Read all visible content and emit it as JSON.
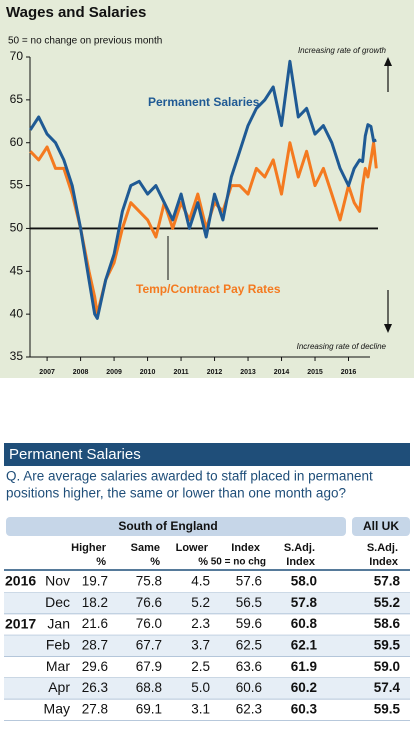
{
  "chart_data": {
    "type": "line",
    "title": "Wages and Salaries",
    "subtitle": "50 = no change on previous month",
    "annotations": [
      "Increasing rate of growth",
      "Increasing rate of decline"
    ],
    "reference_line": 50,
    "x": [
      2007.0,
      2007.25,
      2007.5,
      2007.75,
      2008.0,
      2008.25,
      2008.5,
      2008.75,
      2008.92,
      2009.0,
      2009.25,
      2009.5,
      2009.75,
      2010.0,
      2010.25,
      2010.5,
      2010.75,
      2011.0,
      2011.25,
      2011.5,
      2011.75,
      2012.0,
      2012.25,
      2012.5,
      2012.75,
      2013.0,
      2013.25,
      2013.5,
      2013.75,
      2014.0,
      2014.25,
      2014.5,
      2014.75,
      2015.0,
      2015.25,
      2015.5,
      2015.75,
      2016.0,
      2016.25,
      2016.5,
      2016.67,
      2016.83,
      2016.92,
      2017.0,
      2017.08,
      2017.17,
      2017.25,
      2017.33
    ],
    "series": [
      {
        "name": "Permanent Salaries",
        "color": "#1f5a94",
        "values": [
          61.5,
          63,
          61,
          60,
          58,
          55,
          50,
          44,
          40,
          39.5,
          44,
          47,
          52,
          55,
          55.5,
          54,
          55,
          53,
          51,
          54,
          50,
          53,
          49,
          54,
          51,
          56,
          59,
          62,
          64,
          65,
          66.5,
          62,
          69.5,
          63,
          64,
          61,
          62,
          60,
          57,
          55,
          57,
          58.0,
          57.8,
          60.8,
          62.1,
          61.9,
          60.2,
          60.3
        ]
      },
      {
        "name": "Temp/Contract Pay Rates",
        "color": "#f47a20",
        "values": [
          59,
          58,
          59.5,
          57,
          57,
          54,
          50,
          45,
          42,
          40,
          44,
          46,
          50,
          53,
          52,
          51,
          49,
          53,
          50,
          53,
          51,
          54,
          50,
          53,
          52,
          55,
          55,
          54,
          57,
          56,
          58,
          54,
          60,
          56,
          59,
          55,
          57,
          54,
          51,
          55,
          53,
          52,
          55,
          57,
          56,
          58,
          60,
          57
        ]
      }
    ],
    "xlim": [
      2006.9,
      2017.5
    ],
    "xticks": [
      {
        "value": 2007.5,
        "label": "2007"
      },
      {
        "value": 2008.5,
        "label": "2008"
      },
      {
        "value": 2009.5,
        "label": "2009"
      },
      {
        "value": 2010.5,
        "label": "2010"
      },
      {
        "value": 2011.5,
        "label": "2011"
      },
      {
        "value": 2012.5,
        "label": "2012"
      },
      {
        "value": 2013.5,
        "label": "2013"
      },
      {
        "value": 2014.5,
        "label": "2014"
      },
      {
        "value": 2015.5,
        "label": "2015"
      },
      {
        "value": 2016.5,
        "label": "2016"
      }
    ],
    "ylim": [
      35,
      70
    ],
    "yticks": [
      35,
      40,
      45,
      50,
      55,
      60,
      65,
      70
    ]
  },
  "table": {
    "title": "Permanent Salaries",
    "question": [
      "Q. Are average salaries awarded to staff placed in permanent",
      "positions higher, the same or lower than one month ago?"
    ],
    "groups": [
      "South of England",
      "All UK"
    ],
    "columns": [
      [
        "Higher",
        "%"
      ],
      [
        "Same",
        "%"
      ],
      [
        "Lower",
        "%"
      ],
      [
        "Index",
        "50 = no chg"
      ],
      [
        "S.Adj.",
        "Index"
      ],
      [
        "S.Adj.",
        "Index"
      ]
    ],
    "rows": [
      {
        "year": "2016",
        "month": "Nov",
        "cells": [
          "19.7",
          "75.8",
          "4.5",
          "57.6",
          "58.0",
          "57.8"
        ]
      },
      {
        "month": "Dec",
        "cells": [
          "18.2",
          "76.6",
          "5.2",
          "56.5",
          "57.8",
          "55.2"
        ]
      },
      {
        "year": "2017",
        "month": "Jan",
        "cells": [
          "21.6",
          "76.0",
          "2.3",
          "59.6",
          "60.8",
          "58.6"
        ]
      },
      {
        "month": "Feb",
        "cells": [
          "28.7",
          "67.7",
          "3.7",
          "62.5",
          "62.1",
          "59.5"
        ]
      },
      {
        "month": "Mar",
        "cells": [
          "29.6",
          "67.9",
          "2.5",
          "63.6",
          "61.9",
          "59.0"
        ]
      },
      {
        "month": "Apr",
        "cells": [
          "26.3",
          "68.8",
          "5.0",
          "60.6",
          "60.2",
          "57.4"
        ]
      },
      {
        "month": "May",
        "cells": [
          "27.8",
          "69.1",
          "3.1",
          "62.3",
          "60.3",
          "59.5"
        ]
      }
    ]
  }
}
